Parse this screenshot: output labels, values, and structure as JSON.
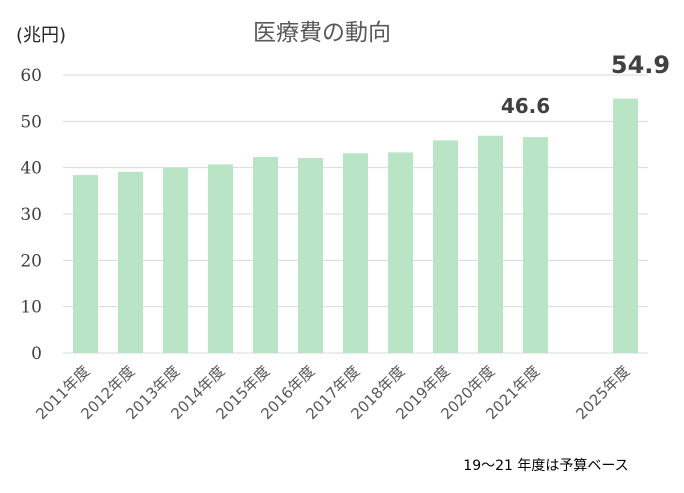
{
  "chart_data": {
    "type": "bar",
    "title": "医療費の動向",
    "unit_label": "(兆円)",
    "note": "19～21 年度は予算ベース",
    "categories": [
      "2011年度",
      "2012年度",
      "2013年度",
      "2014年度",
      "2015年度",
      "2016年度",
      "2017年度",
      "2018年度",
      "2019年度",
      "2020年度",
      "2021年度",
      "",
      "2025年度"
    ],
    "values": [
      38.4,
      39.1,
      40.0,
      40.7,
      42.3,
      42.1,
      43.1,
      43.3,
      45.9,
      46.9,
      46.6,
      null,
      54.9
    ],
    "data_labels": [
      {
        "index": 10,
        "text": "46.6"
      },
      {
        "index": 12,
        "text": "54.9"
      }
    ],
    "ylim": [
      0,
      60
    ],
    "yticks": [
      0,
      10,
      20,
      30,
      40,
      50,
      60
    ],
    "grid": true,
    "bar_color": "#b9e5c6",
    "grid_color": "#d9d9d9",
    "xlabel": "",
    "ylabel": ""
  }
}
